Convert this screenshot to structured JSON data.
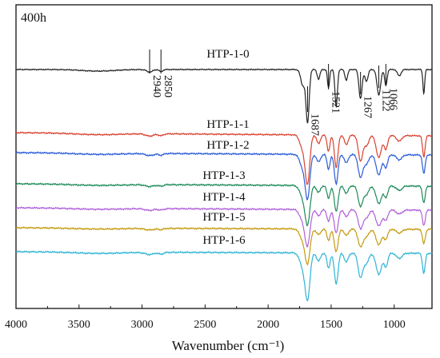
{
  "chart_data": {
    "type": "line",
    "panel_label": "400h",
    "xlabel": "Wavenumber (cm⁻¹)",
    "xlim": [
      4000,
      700
    ],
    "x_reversed": true,
    "x_ticks": [
      4000,
      3500,
      3000,
      2500,
      2000,
      1500,
      1000
    ],
    "y_ticks_shown": false,
    "series": [
      {
        "name": "HTP-1-0",
        "color": "#222222"
      },
      {
        "name": "HTP-1-1",
        "color": "#d9412f"
      },
      {
        "name": "HTP-1-2",
        "color": "#2a5bd7"
      },
      {
        "name": "HTP-1-3",
        "color": "#1e8a5a"
      },
      {
        "name": "HTP-1-4",
        "color": "#b060d8"
      },
      {
        "name": "HTP-1-5",
        "color": "#c49a10"
      },
      {
        "name": "HTP-1-6",
        "color": "#2fb4d4"
      }
    ],
    "peak_annotations": [
      "2940",
      "2850",
      "1687",
      "1521",
      "1267",
      "1122",
      "1066"
    ]
  }
}
